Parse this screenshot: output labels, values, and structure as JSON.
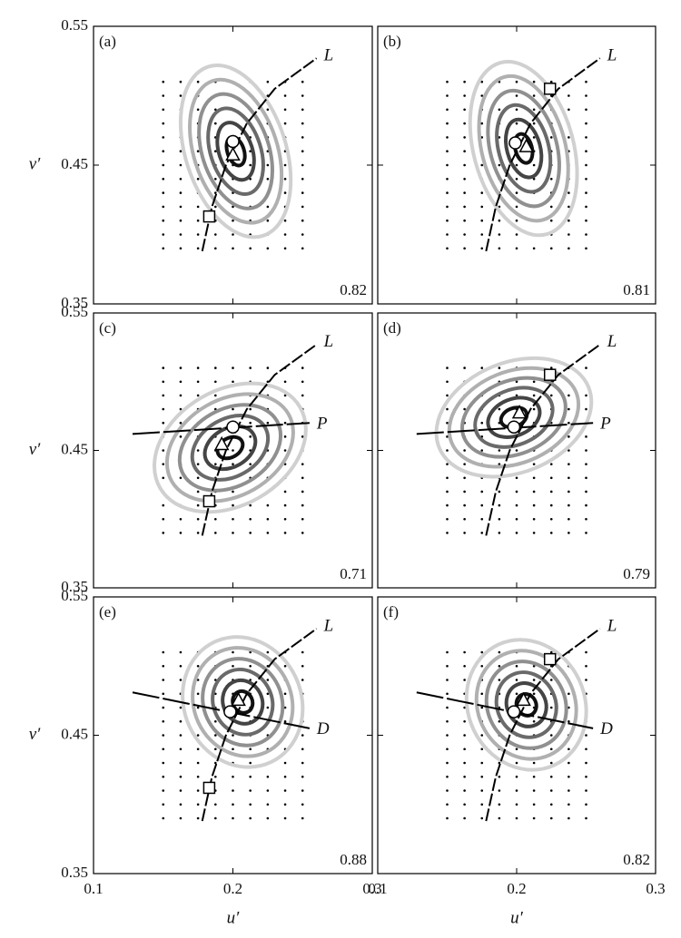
{
  "chart_data": {
    "type": "contour",
    "xlabel": "u′",
    "ylabel": "v′",
    "xlim": [
      0.1,
      0.3
    ],
    "ylim": [
      0.35,
      0.55
    ],
    "xticks": [
      0.1,
      0.2,
      0.3
    ],
    "yticks": [
      0.35,
      0.45,
      0.55
    ],
    "samples": {
      "u": [
        0.15,
        0.1625,
        0.175,
        0.1875,
        0.2,
        0.2125,
        0.225,
        0.2375,
        0.25
      ],
      "v": [
        0.39,
        0.4,
        0.41,
        0.42,
        0.43,
        0.44,
        0.45,
        0.46,
        0.47,
        0.48,
        0.49,
        0.5,
        0.51
      ]
    },
    "panels": [
      {
        "label": "(a)",
        "score": 0.82,
        "circle": [
          0.2,
          0.467
        ],
        "triangle": [
          0.2,
          0.457
        ],
        "square": [
          0.183,
          0.413
        ],
        "contour": {
          "u": 0.202,
          "v": 0.46,
          "ru": 0.036,
          "rv": 0.064,
          "angle": 18
        },
        "lines": [
          {
            "name": "L",
            "u": [
              0.178,
              0.185,
              0.195,
              0.21,
              0.23,
              0.26
            ],
            "v": [
              0.388,
              0.42,
              0.45,
              0.48,
              0.505,
              0.527
            ]
          }
        ]
      },
      {
        "label": "(b)",
        "score": 0.81,
        "circle": [
          0.199,
          0.466
        ],
        "triangle": [
          0.207,
          0.463
        ],
        "square": [
          0.224,
          0.505
        ],
        "contour": {
          "u": 0.205,
          "v": 0.462,
          "ru": 0.036,
          "rv": 0.064,
          "angle": 15
        },
        "lines": [
          {
            "name": "L",
            "u": [
              0.178,
              0.185,
              0.195,
              0.21,
              0.23,
              0.26
            ],
            "v": [
              0.388,
              0.42,
              0.45,
              0.48,
              0.505,
              0.527
            ]
          }
        ]
      },
      {
        "label": "(c)",
        "score": 0.71,
        "circle": [
          0.2,
          0.467
        ],
        "triangle": [
          0.192,
          0.454
        ],
        "square": [
          0.183,
          0.413
        ],
        "contour": {
          "u": 0.198,
          "v": 0.452,
          "ru": 0.058,
          "rv": 0.042,
          "angle": 30
        },
        "lines": [
          {
            "name": "L",
            "u": [
              0.178,
              0.185,
              0.195,
              0.21,
              0.23,
              0.26
            ],
            "v": [
              0.388,
              0.42,
              0.45,
              0.48,
              0.505,
              0.527
            ]
          },
          {
            "name": "P",
            "u": [
              0.128,
              0.255
            ],
            "v": [
              0.462,
              0.47
            ]
          }
        ]
      },
      {
        "label": "(d)",
        "score": 0.79,
        "circle": [
          0.198,
          0.467
        ],
        "triangle": [
          0.202,
          0.477
        ],
        "square": [
          0.224,
          0.505
        ],
        "contour": {
          "u": 0.198,
          "v": 0.474,
          "ru": 0.058,
          "rv": 0.04,
          "angle": 22
        },
        "lines": [
          {
            "name": "L",
            "u": [
              0.178,
              0.185,
              0.195,
              0.21,
              0.23,
              0.26
            ],
            "v": [
              0.388,
              0.42,
              0.45,
              0.48,
              0.505,
              0.527
            ]
          },
          {
            "name": "P",
            "u": [
              0.128,
              0.255
            ],
            "v": [
              0.462,
              0.47
            ]
          }
        ]
      },
      {
        "label": "(e)",
        "score": 0.88,
        "circle": [
          0.198,
          0.467
        ],
        "triangle": [
          0.204,
          0.475
        ],
        "square": [
          0.183,
          0.412
        ],
        "contour": {
          "u": 0.207,
          "v": 0.474,
          "ru": 0.042,
          "rv": 0.048,
          "angle": 25
        },
        "lines": [
          {
            "name": "L",
            "u": [
              0.178,
              0.185,
              0.195,
              0.21,
              0.23,
              0.26
            ],
            "v": [
              0.388,
              0.42,
              0.45,
              0.48,
              0.505,
              0.527
            ]
          },
          {
            "name": "D",
            "u": [
              0.128,
              0.255
            ],
            "v": [
              0.481,
              0.455
            ]
          }
        ]
      },
      {
        "label": "(f)",
        "score": 0.82,
        "circle": [
          0.198,
          0.467
        ],
        "triangle": [
          0.205,
          0.475
        ],
        "square": [
          0.224,
          0.505
        ],
        "contour": {
          "u": 0.207,
          "v": 0.472,
          "ru": 0.042,
          "rv": 0.048,
          "angle": 25
        },
        "lines": [
          {
            "name": "L",
            "u": [
              0.178,
              0.185,
              0.195,
              0.21,
              0.23,
              0.26
            ],
            "v": [
              0.388,
              0.42,
              0.45,
              0.48,
              0.505,
              0.527
            ]
          },
          {
            "name": "D",
            "u": [
              0.128,
              0.255
            ],
            "v": [
              0.481,
              0.455
            ]
          }
        ]
      }
    ]
  }
}
